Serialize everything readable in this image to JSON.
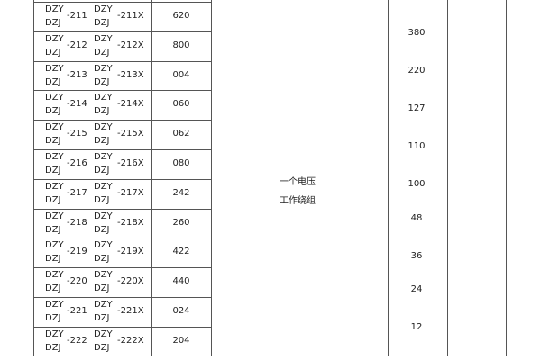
{
  "table": {
    "rows": [
      {
        "prefix_top": "DZY",
        "prefix_bottom": "DZJ",
        "num": "-211",
        "prefix2_top": "DZY",
        "prefix2_bottom": "DZJ",
        "num2": "-211X",
        "code": "620"
      },
      {
        "prefix_top": "DZY",
        "prefix_bottom": "DZJ",
        "num": "-212",
        "prefix2_top": "DZY",
        "prefix2_bottom": "DZJ",
        "num2": "-212X",
        "code": "800"
      },
      {
        "prefix_top": "DZY",
        "prefix_bottom": "DZJ",
        "num": "-213",
        "prefix2_top": "DZY",
        "prefix2_bottom": "DZJ",
        "num2": "-213X",
        "code": "004"
      },
      {
        "prefix_top": "DZY",
        "prefix_bottom": "DZJ",
        "num": "-214",
        "prefix2_top": "DZY",
        "prefix2_bottom": "DZJ",
        "num2": "-214X",
        "code": "060"
      },
      {
        "prefix_top": "DZY",
        "prefix_bottom": "DZJ",
        "num": "-215",
        "prefix2_top": "DZY",
        "prefix2_bottom": "DZJ",
        "num2": "-215X",
        "code": "062"
      },
      {
        "prefix_top": "DZY",
        "prefix_bottom": "DZJ",
        "num": "-216",
        "prefix2_top": "DZY",
        "prefix2_bottom": "DZJ",
        "num2": "-216X",
        "code": "080"
      },
      {
        "prefix_top": "DZY",
        "prefix_bottom": "DZJ",
        "num": "-217",
        "prefix2_top": "DZY",
        "prefix2_bottom": "DZJ",
        "num2": "-217X",
        "code": "242"
      },
      {
        "prefix_top": "DZY",
        "prefix_bottom": "DZJ",
        "num": "-218",
        "prefix2_top": "DZY",
        "prefix2_bottom": "DZJ",
        "num2": "-218X",
        "code": "260"
      },
      {
        "prefix_top": "DZY",
        "prefix_bottom": "DZJ",
        "num": "-219",
        "prefix2_top": "DZY",
        "prefix2_bottom": "DZJ",
        "num2": "-219X",
        "code": "422"
      },
      {
        "prefix_top": "DZY",
        "prefix_bottom": "DZJ",
        "num": "-220",
        "prefix2_top": "DZY",
        "prefix2_bottom": "DZJ",
        "num2": "-220X",
        "code": "440"
      },
      {
        "prefix_top": "DZY",
        "prefix_bottom": "DZJ",
        "num": "-221",
        "prefix2_top": "DZY",
        "prefix2_bottom": "DZJ",
        "num2": "-221X",
        "code": "024"
      },
      {
        "prefix_top": "DZY",
        "prefix_bottom": "DZJ",
        "num": "-222",
        "prefix2_top": "DZY",
        "prefix2_bottom": "DZJ",
        "num2": "-222X",
        "code": "204"
      }
    ],
    "winding_line1": "一个电压",
    "winding_line2": "工作绕组",
    "voltages": [
      "380",
      "220",
      "127",
      "110",
      "100",
      "48",
      "36",
      "24",
      "12"
    ]
  }
}
